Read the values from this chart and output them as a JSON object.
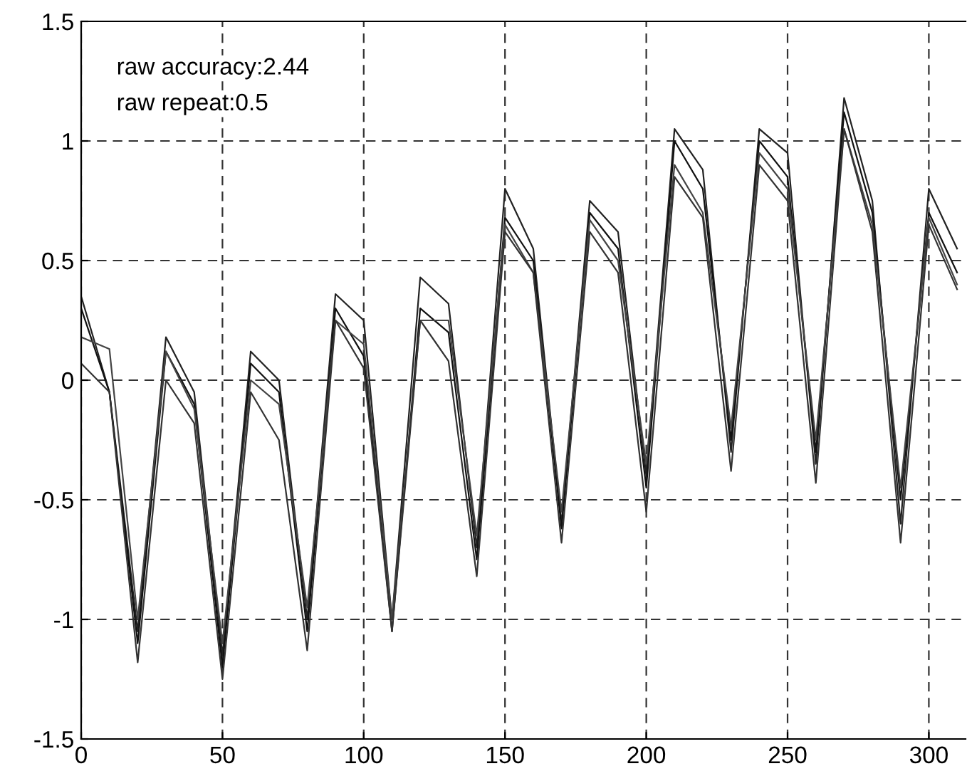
{
  "chart_data": {
    "type": "line",
    "x": [
      0,
      10,
      20,
      30,
      40,
      50,
      60,
      70,
      80,
      90,
      100,
      110,
      120,
      130,
      140,
      150,
      160,
      170,
      180,
      190,
      200,
      210,
      220,
      230,
      240,
      250,
      260,
      270,
      280,
      290,
      300,
      310
    ],
    "series": [
      {
        "color": "#222222",
        "values": [
          0.35,
          -0.05,
          -1.05,
          0.18,
          -0.05,
          -1.15,
          0.12,
          0.0,
          -1.0,
          0.36,
          0.25,
          -1.0,
          0.43,
          0.32,
          -0.7,
          0.8,
          0.55,
          -0.6,
          0.75,
          0.62,
          -0.4,
          1.05,
          0.88,
          -0.3,
          1.05,
          0.95,
          -0.35,
          1.18,
          0.75,
          -0.6,
          0.8,
          0.55
        ]
      },
      {
        "color": "#111111",
        "values": [
          0.3,
          -0.05,
          -1.1,
          0.12,
          -0.1,
          -1.2,
          0.07,
          -0.05,
          -1.05,
          0.3,
          0.1,
          -1.05,
          0.3,
          0.2,
          -0.75,
          0.68,
          0.5,
          -0.62,
          0.7,
          0.55,
          -0.45,
          1.0,
          0.8,
          -0.25,
          1.0,
          0.85,
          -0.3,
          1.12,
          0.7,
          -0.5,
          0.7,
          0.45
        ]
      },
      {
        "color": "#444444",
        "values": [
          0.18,
          0.13,
          -1.0,
          0.12,
          -0.12,
          -1.1,
          0.0,
          -0.1,
          -0.95,
          0.25,
          0.15,
          -1.0,
          0.25,
          0.25,
          -0.65,
          0.65,
          0.45,
          -0.55,
          0.67,
          0.5,
          -0.35,
          0.9,
          0.7,
          -0.2,
          0.95,
          0.8,
          -0.25,
          1.05,
          0.65,
          -0.45,
          0.68,
          0.4
        ]
      },
      {
        "color": "#333333",
        "values": [
          0.07,
          -0.05,
          -1.18,
          0.0,
          -0.18,
          -1.25,
          -0.05,
          -0.25,
          -1.13,
          0.25,
          0.05,
          -1.05,
          0.25,
          0.08,
          -0.82,
          0.62,
          0.45,
          -0.68,
          0.62,
          0.45,
          -0.55,
          0.85,
          0.68,
          -0.38,
          0.9,
          0.75,
          -0.43,
          1.05,
          0.62,
          -0.68,
          0.65,
          0.38
        ]
      }
    ],
    "xlim": [
      0,
      313
    ],
    "ylim": [
      -1.5,
      1.5
    ],
    "xticks": [
      0,
      50,
      100,
      150,
      200,
      250,
      300
    ],
    "yticks": [
      -1.5,
      -1,
      -0.5,
      0,
      0.5,
      1,
      1.5
    ],
    "grid": true,
    "line_style": "solid",
    "annotations": [
      "raw accuracy:2.44",
      "raw repeat:0.5"
    ]
  }
}
